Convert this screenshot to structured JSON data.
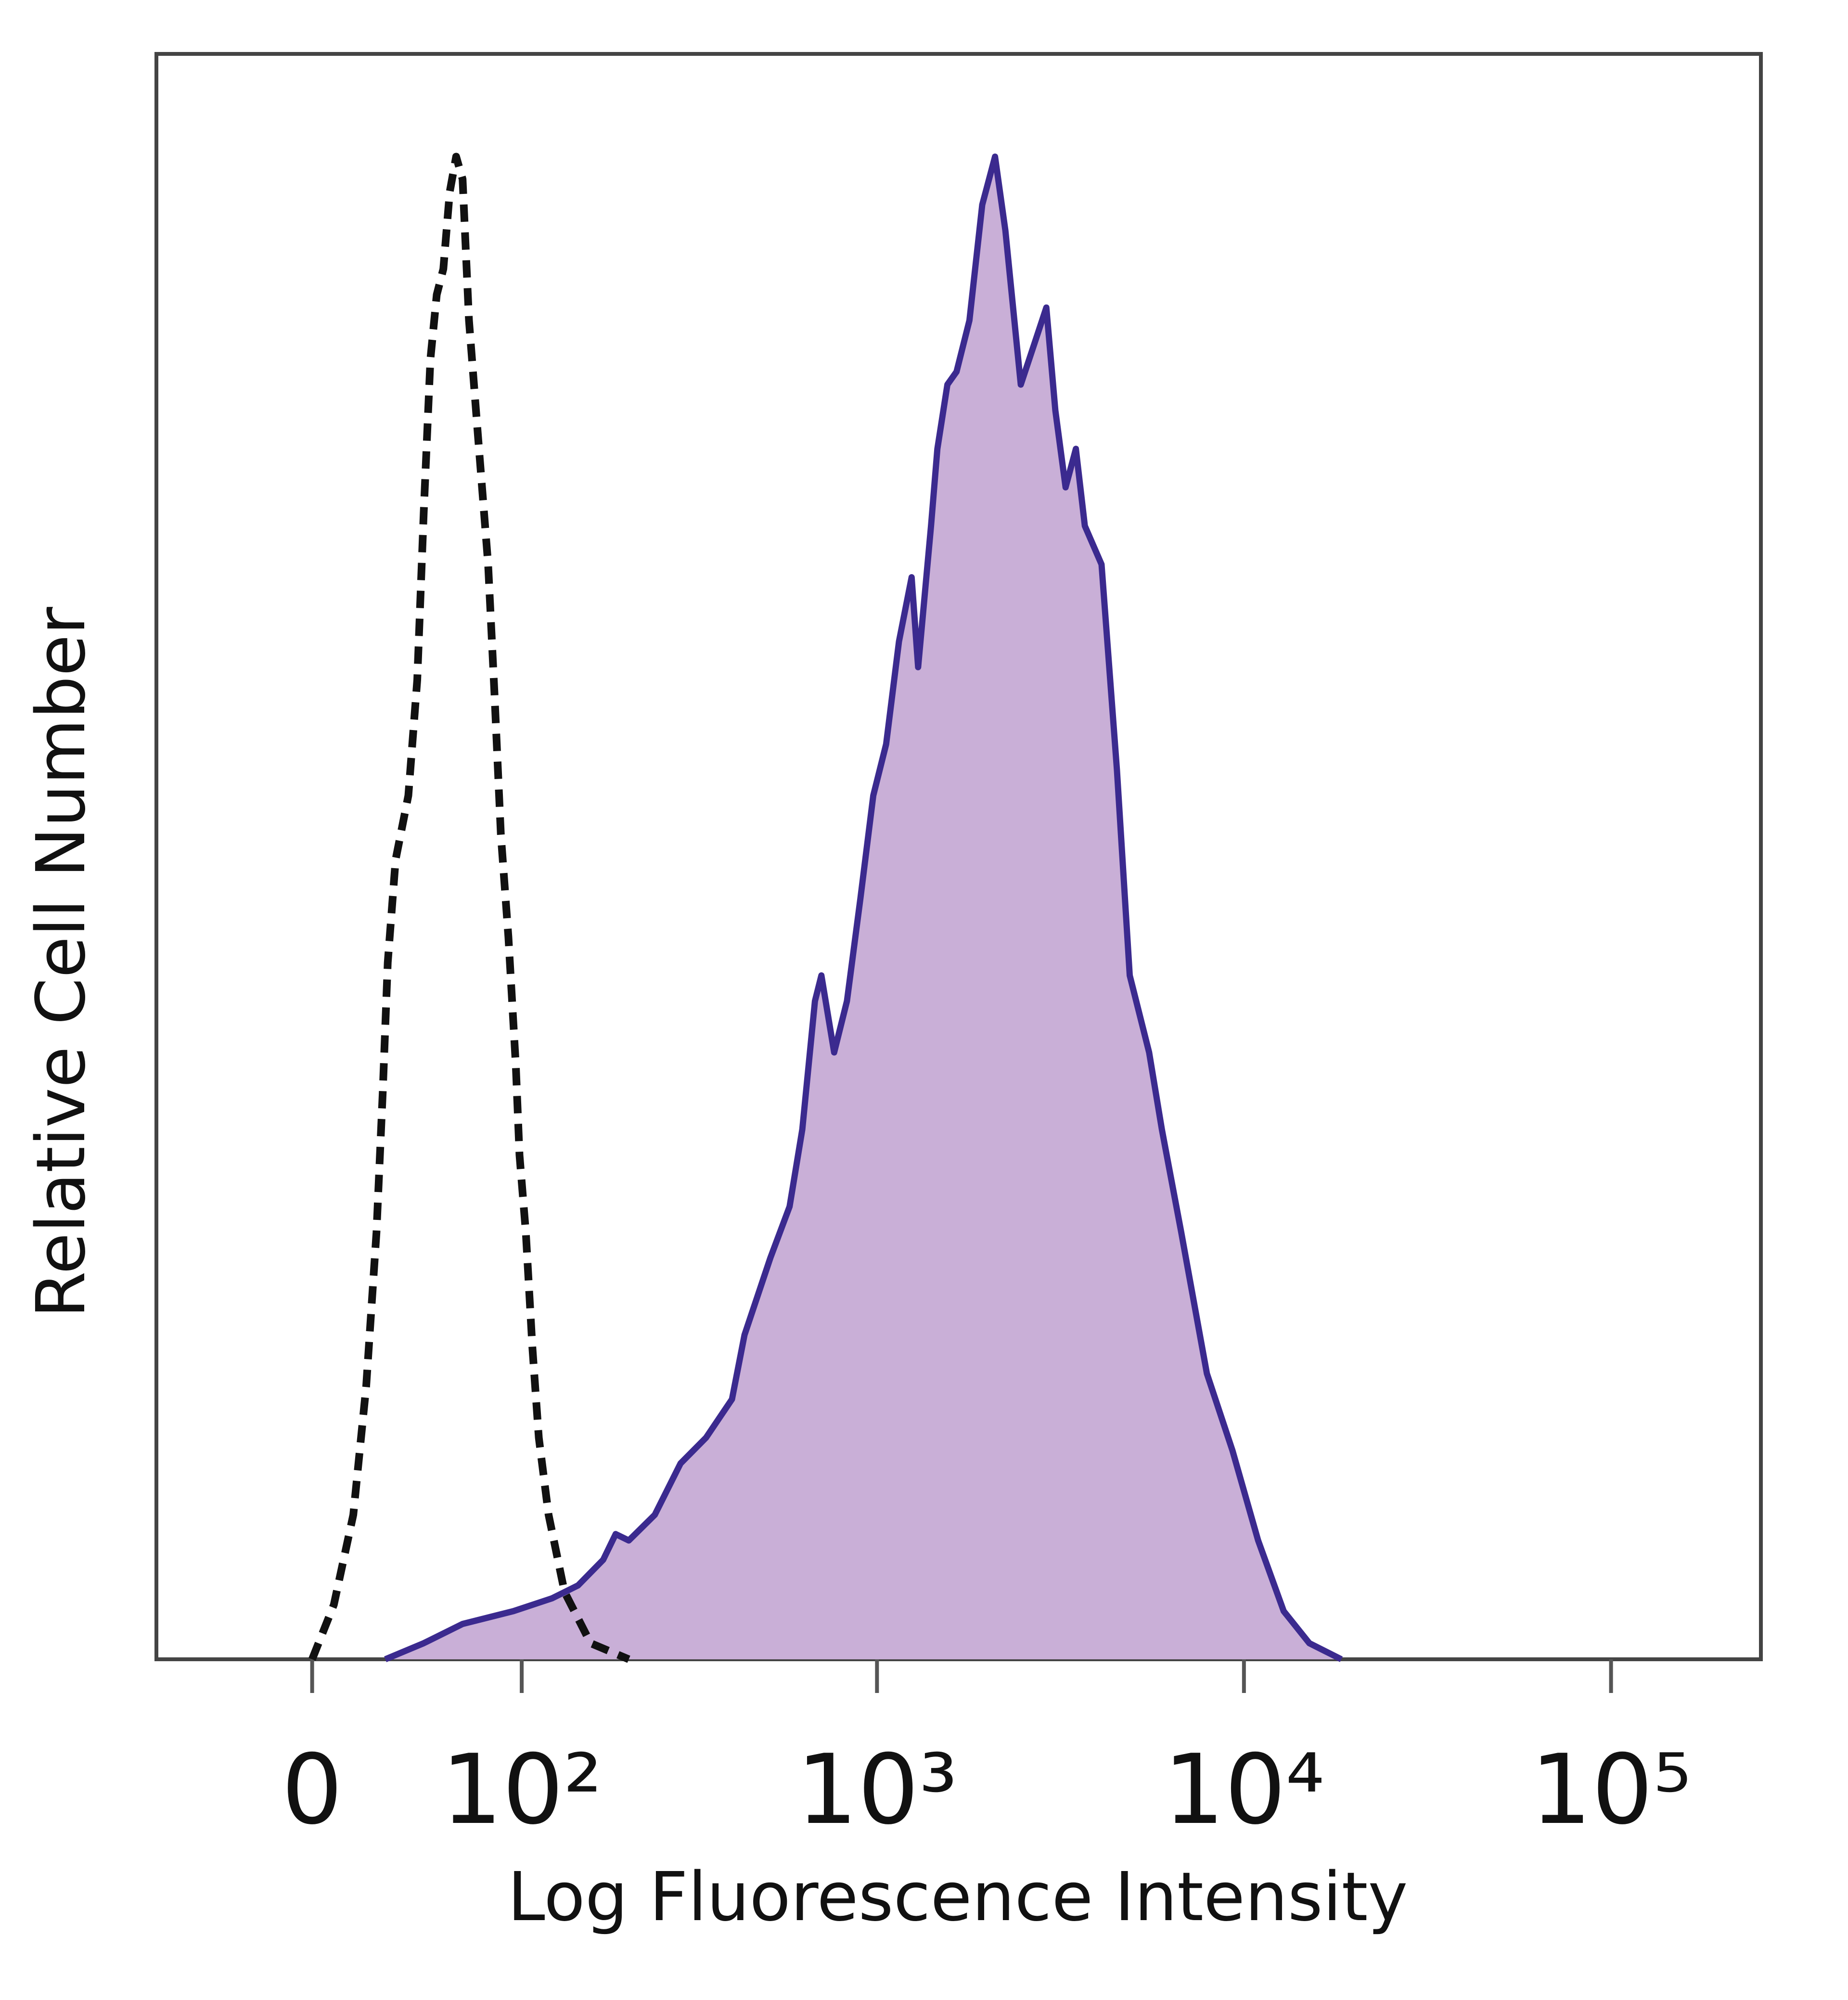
{
  "chart_data": {
    "type": "line",
    "xlabel": "Log Fluorescence Intensity",
    "ylabel": "Relative Cell Number",
    "xscale": "biexponential",
    "xlim": [
      -66,
      256000
    ],
    "ylim": [
      0,
      100
    ],
    "xticks": [
      0,
      {
        "value": 100,
        "label": "10²"
      },
      {
        "value": 1000,
        "label": "10³"
      },
      {
        "value": 10000,
        "label": "10⁴"
      },
      {
        "value": 100000,
        "label": "10⁵"
      }
    ],
    "series": [
      {
        "color": "#111111",
        "style": "dashed",
        "x": [
          0,
          7.9,
          15.1,
          20.0,
          24.0,
          26.5,
          28.5,
          31.7,
          37.1,
          41.0,
          43.9,
          47.0,
          50.0,
          53.2,
          56.4,
          59.7,
          63.1,
          66.6,
          71.7,
          77.7,
          81.6,
          85.7,
          90.7,
          95.8,
          98.4,
          103,
          108,
          113,
          121,
          135,
          161,
          207
        ],
        "values": [
          0,
          3.4,
          9.0,
          17.0,
          26.6,
          35.4,
          43.4,
          49.8,
          53.8,
          61.0,
          71.4,
          81.0,
          85.0,
          86.6,
          91.4,
          93.6,
          92.2,
          83.4,
          76.2,
          68.2,
          60.2,
          51.4,
          45.0,
          37.0,
          31.4,
          26.6,
          19.4,
          13.8,
          9.0,
          4.2,
          1.0,
          0
        ]
      },
      {
        "color": "#3b2a8f",
        "fill": "#c9afd7",
        "style": "solid",
        "x": [
          27.5,
          43.9,
          63.1,
          94.1,
          124,
          148,
          175,
          190,
          207,
          245,
          289,
          340,
          401,
          434,
          511,
          577,
          625,
          677,
          705,
          764,
          828,
          901,
          977,
          1059,
          1148,
          1243,
          1295,
          1404,
          1461,
          1556,
          1648,
          1787,
          1936,
          2098,
          2239,
          2466,
          2672,
          2895,
          3063,
          3266,
          3484,
          3686,
          4093,
          4508,
          4885,
          5516,
          5976,
          6747,
          7926,
          9306,
          10930,
          12830,
          15070,
          18420
        ],
        "values": [
          0,
          1.0,
          2.2,
          3.0,
          3.8,
          4.6,
          6.2,
          7.8,
          7.4,
          9.0,
          12.2,
          13.8,
          16.2,
          20.2,
          25.0,
          28.2,
          33.0,
          41.0,
          42.6,
          37.8,
          41.0,
          47.4,
          53.8,
          57.0,
          63.4,
          67.4,
          61.8,
          70.6,
          75.4,
          79.4,
          80.2,
          83.4,
          90.6,
          93.6,
          89.0,
          79.4,
          81.8,
          84.2,
          77.8,
          73.0,
          75.4,
          70.6,
          68.2,
          55.4,
          42.6,
          37.8,
          33.0,
          26.6,
          17.8,
          13.0,
          7.4,
          3.0,
          1.0,
          0
        ]
      }
    ]
  }
}
